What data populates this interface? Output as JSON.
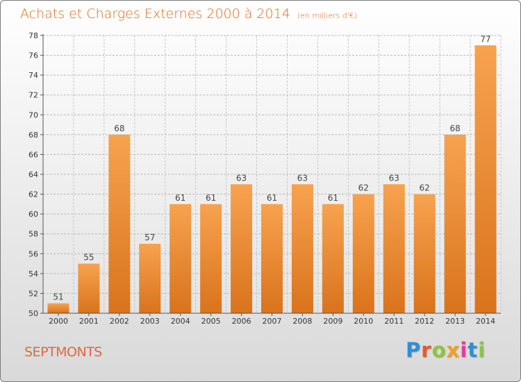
{
  "header": {
    "title": "Achats et Charges Externes 2000 à 2014",
    "unit": "(en milliers d'€)"
  },
  "footer": {
    "commune": "SEPTMONTS",
    "logo_text": "Proxiti"
  },
  "colors": {
    "title": "#e06a1c",
    "bar_top": "#f7a24f",
    "bar_bottom": "#d9731c"
  },
  "chart_data": {
    "type": "bar",
    "title": "Achats et Charges Externes 2000 à 2014",
    "subtitle": "(en milliers d'€)",
    "categories": [
      "2000",
      "2001",
      "2002",
      "2003",
      "2004",
      "2005",
      "2006",
      "2007",
      "2008",
      "2009",
      "2010",
      "2011",
      "2012",
      "2013",
      "2014"
    ],
    "values": [
      51,
      55,
      68,
      57,
      61,
      61,
      63,
      61,
      63,
      61,
      62,
      63,
      62,
      68,
      77
    ],
    "data_labels": [
      "51",
      "55",
      "68",
      "57",
      "61",
      "61",
      "63",
      "61",
      "63",
      "61",
      "62",
      "63",
      "62",
      "68",
      "77"
    ],
    "ylim": [
      50,
      78
    ],
    "yticks": [
      50,
      52,
      54,
      56,
      58,
      60,
      62,
      64,
      66,
      68,
      70,
      72,
      74,
      76,
      78
    ],
    "grid": true
  }
}
